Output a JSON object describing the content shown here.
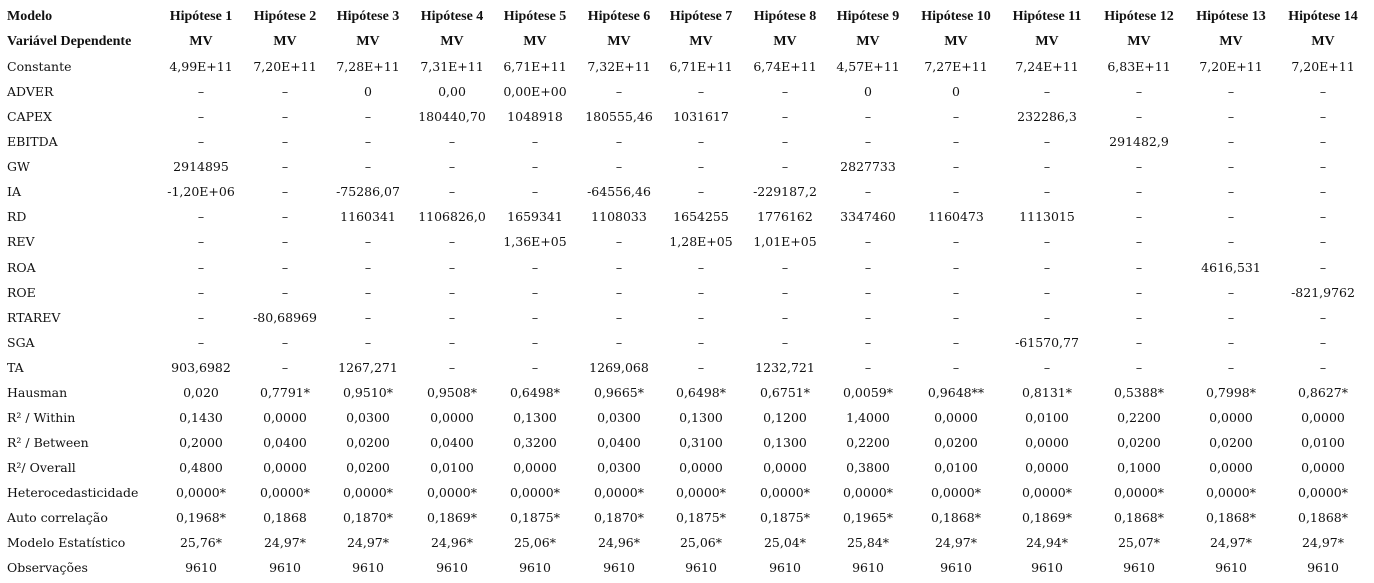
{
  "table": {
    "header": [
      "Modelo",
      "Hipótese 1",
      "Hipótese 2",
      "Hipótese 3",
      "Hipótese 4",
      "Hipótese 5",
      "Hipótese 6",
      "Hipótese 7",
      "Hipótese 8",
      "Hipótese 9",
      "Hipótese 10",
      "Hipótese 11",
      "Hipótese 12",
      "Hipótese 13",
      "Hipótese 14"
    ],
    "rows": [
      [
        "Variável Dependente",
        "MV",
        "MV",
        "MV",
        "MV",
        "MV",
        "MV",
        "MV",
        "MV",
        "MV",
        "MV",
        "MV",
        "MV",
        "MV",
        "MV"
      ],
      [
        "Constante",
        "4,99E+11",
        "7,20E+11",
        "7,28E+11",
        "7,31E+11",
        "6,71E+11",
        "7,32E+11",
        "6,71E+11",
        "6,74E+11",
        "4,57E+11",
        "7,27E+11",
        "7,24E+11",
        "6,83E+11",
        "7,20E+11",
        "7,20E+11"
      ],
      [
        "ADVER",
        "–",
        "–",
        "0",
        "0,00",
        "0,00E+00",
        "–",
        "–",
        "–",
        "0",
        "0",
        "–",
        "–",
        "–",
        "–"
      ],
      [
        "CAPEX",
        "–",
        "–",
        "–",
        "180440,70",
        "1048918",
        "180555,46",
        "1031617",
        "–",
        "–",
        "–",
        "232286,3",
        "–",
        "–",
        "–"
      ],
      [
        "EBITDA",
        "–",
        "–",
        "–",
        "–",
        "–",
        "–",
        "–",
        "–",
        "–",
        "–",
        "–",
        "291482,9",
        "–",
        "–"
      ],
      [
        "GW",
        "2914895",
        "–",
        "–",
        "–",
        "–",
        "–",
        "–",
        "–",
        "2827733",
        "–",
        "–",
        "–",
        "–",
        "–"
      ],
      [
        "IA",
        "-1,20E+06",
        "–",
        "-75286,07",
        "–",
        "–",
        "-64556,46",
        "–",
        "-229187,2",
        "–",
        "–",
        "–",
        "–",
        "–",
        "–"
      ],
      [
        "RD",
        "–",
        "–",
        "1160341",
        "1106826,0",
        "1659341",
        "1108033",
        "1654255",
        "1776162",
        "3347460",
        "1160473",
        "1113015",
        "–",
        "–",
        "–"
      ],
      [
        "REV",
        "–",
        "–",
        "–",
        "–",
        "1,36E+05",
        "–",
        "1,28E+05",
        "1,01E+05",
        "–",
        "–",
        "–",
        "–",
        "–",
        "–"
      ],
      [
        "ROA",
        "–",
        "–",
        "–",
        "–",
        "–",
        "–",
        "–",
        "–",
        "–",
        "–",
        "–",
        "–",
        "4616,531",
        "–"
      ],
      [
        "ROE",
        "–",
        "–",
        "–",
        "–",
        "–",
        "–",
        "–",
        "–",
        "–",
        "–",
        "–",
        "–",
        "–",
        "-821,9762"
      ],
      [
        "RTAREV",
        "–",
        "-80,68969",
        "–",
        "–",
        "–",
        "–",
        "–",
        "–",
        "–",
        "–",
        "–",
        "–",
        "–",
        "–"
      ],
      [
        "SGA",
        "–",
        "–",
        "–",
        "–",
        "–",
        "–",
        "–",
        "–",
        "–",
        "–",
        "-61570,77",
        "–",
        "–",
        "–"
      ],
      [
        "TA",
        "903,6982",
        "–",
        "1267,271",
        "–",
        "–",
        "1269,068",
        "–",
        "1232,721",
        "–",
        "–",
        "–",
        "–",
        "–",
        "–"
      ],
      [
        "Hausman",
        "0,020",
        "0,7791*",
        "0,9510*",
        "0,9508*",
        "0,6498*",
        "0,9665*",
        "0,6498*",
        "0,6751*",
        "0,0059*",
        "0,9648**",
        "0,8131*",
        "0,5388*",
        "0,7998*",
        "0,8627*"
      ],
      [
        "R² / Within",
        "0,1430",
        "0,0000",
        "0,0300",
        "0,0000",
        "0,1300",
        "0,0300",
        "0,1300",
        "0,1200",
        "1,4000",
        "0,0000",
        "0,0100",
        "0,2200",
        "0,0000",
        "0,0000"
      ],
      [
        "R² / Between",
        "0,2000",
        "0,0400",
        "0,0200",
        "0,0400",
        "0,3200",
        "0,0400",
        "0,3100",
        "0,1300",
        "0,2200",
        "0,0200",
        "0,0000",
        "0,0200",
        "0,0200",
        "0,0100"
      ],
      [
        "R²/ Overall",
        "0,4800",
        "0,0000",
        "0,0200",
        "0,0100",
        "0,0000",
        "0,0300",
        "0,0000",
        "0,0000",
        "0,3800",
        "0,0100",
        "0,0000",
        "0,1000",
        "0,0000",
        "0,0000"
      ],
      [
        "Heterocedasticidade",
        "0,0000*",
        "0,0000*",
        "0,0000*",
        "0,0000*",
        "0,0000*",
        "0,0000*",
        "0,0000*",
        "0,0000*",
        "0,0000*",
        "0,0000*",
        "0,0000*",
        "0,0000*",
        "0,0000*",
        "0,0000*"
      ],
      [
        "Auto correlação",
        "0,1968*",
        "0,1868",
        "0,1870*",
        "0,1869*",
        "0,1875*",
        "0,1870*",
        "0,1875*",
        "0,1875*",
        "0,1965*",
        "0,1868*",
        "0,1869*",
        "0,1868*",
        "0,1868*",
        "0,1868*"
      ],
      [
        "Modelo Estatístico",
        "25,76*",
        "24,97*",
        "24,97*",
        "24,96*",
        "25,06*",
        "24,96*",
        "25,06*",
        "25,04*",
        "25,84*",
        "24,97*",
        "24,94*",
        "25,07*",
        "24,97*",
        "24,97*"
      ],
      [
        "Observações",
        "9610",
        "9610",
        "9610",
        "9610",
        "9610",
        "9610",
        "9610",
        "9610",
        "9610",
        "9610",
        "9610",
        "9610",
        "9610",
        "9610"
      ]
    ]
  }
}
